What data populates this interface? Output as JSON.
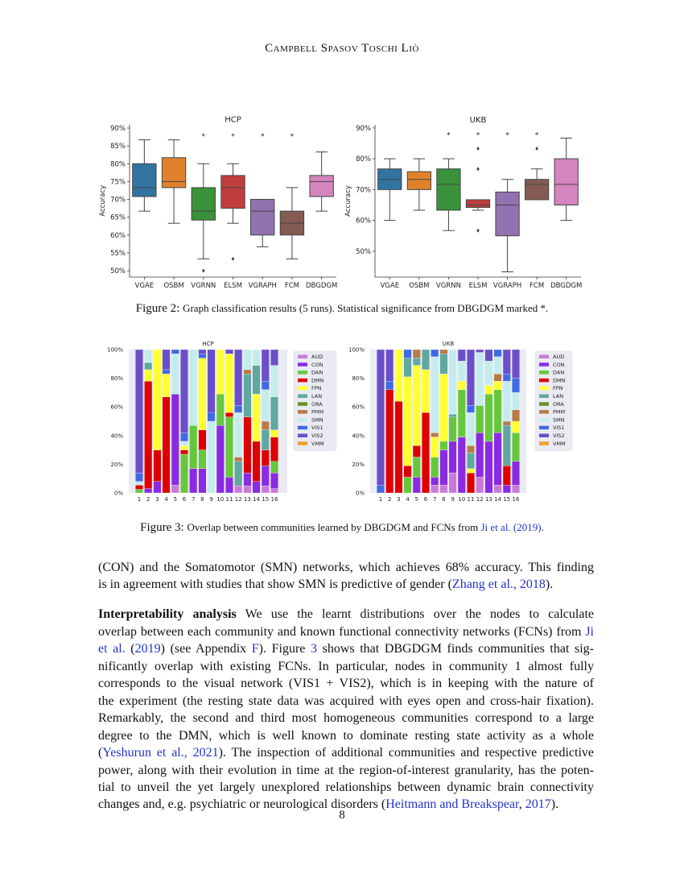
{
  "header": {
    "running_title": "Campbell Spasov Toschi Liò"
  },
  "figure2": {
    "label": "Figure 2:",
    "caption": "Graph classification results (5 runs). Statistical significance from DBGDGM marked *."
  },
  "figure3": {
    "label": "Figure 3:",
    "caption_pre": "Overlap between communities learned by DBGDGM and FCNs from ",
    "caption_link": "Ji et al. (2019)",
    "caption_post": "."
  },
  "body": {
    "lines": [
      [
        {
          "t": "(CON) and the Somatomotor (SMN) networks, which achieves 68% accuracy. This finding"
        }
      ],
      [
        {
          "t": "is in agreement with studies that show SMN is predictive of gender ("
        },
        {
          "t": "Zhang et al., 2018",
          "link": true
        },
        {
          "t": ")."
        }
      ],
      [
        {
          "t": "Interpretability analysis",
          "bold": true
        },
        {
          "t": "  We use the learnt distributions over the nodes to calculate"
        }
      ],
      [
        {
          "t": "overlap between each community and known functional connectivity networks (FCNs) from "
        },
        {
          "t": "Ji",
          "link": true
        }
      ],
      [
        {
          "t": "et al.",
          "link": true
        },
        {
          "t": " ("
        },
        {
          "t": "2019",
          "link": true
        },
        {
          "t": ") (see Appendix "
        },
        {
          "t": "F",
          "link": true
        },
        {
          "t": ").  Figure "
        },
        {
          "t": "3",
          "link": true
        },
        {
          "t": " shows that DBGDGM finds communities that sig-"
        }
      ],
      [
        {
          "t": "nificantly overlap with existing FCNs.  In particular, nodes in community 1 almost fully"
        }
      ],
      [
        {
          "t": "corresponds to the visual network (VIS1 + VIS2), which is in keeping with the nature of"
        }
      ],
      [
        {
          "t": "the experiment (the resting state data was acquired with eyes open and cross-hair fixation)."
        }
      ],
      [
        {
          "t": "Remarkably, the second and third most homogeneous communities correspond to a large"
        }
      ],
      [
        {
          "t": "degree to the DMN, which is well known to dominate resting state activity as a whole"
        }
      ],
      [
        {
          "t": "("
        },
        {
          "t": "Yeshurun et al., 2021",
          "link": true
        },
        {
          "t": "). The inspection of additional communities and respective predictive"
        }
      ],
      [
        {
          "t": "power, along with their evolution in time at the region-of-interest granularity, has the poten-"
        }
      ],
      [
        {
          "t": "tial to unveil the yet largely unexplored relationships between dynamic brain connectivity"
        }
      ],
      [
        {
          "t": "changes and, e.g. psychiatric or neurological disorders ("
        },
        {
          "t": "Heitmann and Breakspear",
          "link": true
        },
        {
          "t": ", "
        },
        {
          "t": "2017",
          "link": true
        },
        {
          "t": ")."
        }
      ]
    ]
  },
  "page_number": "8",
  "chart_data": [
    {
      "type": "box",
      "title": "HCP",
      "ylabel": "Accuracy",
      "ylim": [
        48.2,
        91
      ],
      "yticks": [
        "50%",
        "55%",
        "60%",
        "65%",
        "70%",
        "75%",
        "80%",
        "85%",
        "90%"
      ],
      "ytick_values": [
        50,
        55,
        60,
        65,
        70,
        75,
        80,
        85,
        90
      ],
      "significance_marker": "*",
      "boxes": [
        {
          "name": "VGAE",
          "color": "#3274a1",
          "whislo": 66.7,
          "q1": 70.8,
          "med": 73.3,
          "q3": 80,
          "whishi": 86.7,
          "fliers": [],
          "significant": false
        },
        {
          "name": "OSBM",
          "color": "#e1812c",
          "whislo": 63.3,
          "q1": 73.3,
          "med": 75,
          "q3": 81.7,
          "whishi": 86.7,
          "fliers": [],
          "significant": false
        },
        {
          "name": "VGRNN",
          "color": "#3a923a",
          "whislo": 53.3,
          "q1": 64.2,
          "med": 66.7,
          "q3": 73.3,
          "whishi": 80,
          "fliers": [
            50
          ],
          "significant": true
        },
        {
          "name": "ELSM",
          "color": "#c03d3e",
          "whislo": 63.3,
          "q1": 67.5,
          "med": 73.3,
          "q3": 76.7,
          "whishi": 80,
          "fliers": [
            53.3
          ],
          "significant": true
        },
        {
          "name": "VGRAPH",
          "color": "#9372b2",
          "whislo": 56.7,
          "q1": 60,
          "med": 66.7,
          "q3": 70,
          "whishi": 70,
          "fliers": [],
          "significant": true
        },
        {
          "name": "FCM",
          "color": "#845b53",
          "whislo": 53.3,
          "q1": 60,
          "med": 63.3,
          "q3": 66.7,
          "whishi": 73.3,
          "fliers": [],
          "significant": true
        },
        {
          "name": "DBGDGM",
          "color": "#d684bd",
          "whislo": 66.7,
          "q1": 70.8,
          "med": 75,
          "q3": 76.7,
          "whishi": 83.3,
          "fliers": [],
          "significant": false
        }
      ]
    },
    {
      "type": "box",
      "title": "UKB",
      "ylabel": "Accuracy",
      "ylim": [
        41.6,
        91
      ],
      "yticks": [
        "50%",
        "60%",
        "70%",
        "80%",
        "90%"
      ],
      "ytick_values": [
        50,
        60,
        70,
        80,
        90
      ],
      "significance_marker": "*",
      "boxes": [
        {
          "name": "VGAE",
          "color": "#3274a1",
          "whislo": 60,
          "q1": 70,
          "med": 73.3,
          "q3": 76.7,
          "whishi": 80,
          "fliers": [],
          "significant": false
        },
        {
          "name": "OSBM",
          "color": "#e1812c",
          "whislo": 63.3,
          "q1": 70,
          "med": 73.3,
          "q3": 75.8,
          "whishi": 80,
          "fliers": [],
          "significant": false
        },
        {
          "name": "VGRNN",
          "color": "#3a923a",
          "whislo": 56.7,
          "q1": 63.3,
          "med": 71.7,
          "q3": 76.7,
          "whishi": 80,
          "fliers": [],
          "significant": true
        },
        {
          "name": "ELSM",
          "color": "#c03d3e",
          "whislo": 63.3,
          "q1": 64.2,
          "med": 65,
          "q3": 66.7,
          "whishi": 66.7,
          "fliers": [
            83.3,
            76.7,
            56.7
          ],
          "significant": true
        },
        {
          "name": "VGRAPH",
          "color": "#9372b2",
          "whislo": 43.3,
          "q1": 55,
          "med": 65,
          "q3": 69.2,
          "whishi": 73.3,
          "fliers": [],
          "significant": true
        },
        {
          "name": "FCM",
          "color": "#845b53",
          "whislo": 66.7,
          "q1": 66.7,
          "med": 71.7,
          "q3": 73.3,
          "whishi": 76.7,
          "fliers": [
            83.3
          ],
          "significant": true
        },
        {
          "name": "DBGDGM",
          "color": "#d684bd",
          "whislo": 60,
          "q1": 65,
          "med": 71.7,
          "q3": 80,
          "whishi": 86.7,
          "fliers": [],
          "significant": false
        }
      ]
    },
    {
      "type": "stacked_bar",
      "title": "HCP",
      "ylim": [
        0,
        100
      ],
      "yticks": [
        "0%",
        "20%",
        "40%",
        "60%",
        "80%",
        "100%"
      ],
      "ytick_values": [
        0,
        20,
        40,
        60,
        80,
        100
      ],
      "categories": [
        "1",
        "2",
        "3",
        "4",
        "5",
        "6",
        "7",
        "8",
        "9",
        "10",
        "11",
        "12",
        "13",
        "14",
        "15",
        "16"
      ],
      "legend": "right",
      "networks": [
        {
          "name": "AUD",
          "color": "#c97ad9"
        },
        {
          "name": "CON",
          "color": "#8a2be2"
        },
        {
          "name": "DAN",
          "color": "#66c73c"
        },
        {
          "name": "DMN",
          "color": "#dd0000"
        },
        {
          "name": "FPN",
          "color": "#ffff33"
        },
        {
          "name": "LAN",
          "color": "#5fa8a0"
        },
        {
          "name": "ORA",
          "color": "#6b8e23"
        },
        {
          "name": "PMM",
          "color": "#b87a48"
        },
        {
          "name": "SMN",
          "color": "#c4ecec"
        },
        {
          "name": "VIS1",
          "color": "#4169e1"
        },
        {
          "name": "VIS2",
          "color": "#6a4fc8"
        },
        {
          "name": "VMM",
          "color": "#f0a030"
        }
      ],
      "stacks": [
        {
          "DAN": 2.5,
          "DMN": 3,
          "SMN": 2.5,
          "VIS1": 6,
          "VIS2": 86
        },
        {
          "CON": 3,
          "DMN": 75,
          "FPN": 8,
          "LAN": 5,
          "SMN": 9
        },
        {
          "CON": 8,
          "DMN": 22,
          "FPN": 70
        },
        {
          "DMN": 67,
          "FPN": 16,
          "VIS1": 3,
          "VIS2": 14
        },
        {
          "AUD": 5.5,
          "CON": 63.5,
          "SMN": 28,
          "VIS1": 3
        },
        {
          "DAN": 27,
          "DMN": 3,
          "FPN": 3,
          "SMN": 3,
          "VIS1": 6,
          "VIS2": 58
        },
        {
          "CON": 17,
          "DAN": 30,
          "SMN": 53
        },
        {
          "CON": 17,
          "DAN": 13,
          "DMN": 14,
          "FPN": 50,
          "VIS1": 3,
          "VIS2": 3
        },
        {
          "SMN": 50,
          "VIS1": 6,
          "VIS2": 44
        },
        {
          "CON": 47,
          "DAN": 22,
          "FPN": 31
        },
        {
          "CON": 11,
          "DAN": 42,
          "DMN": 3,
          "FPN": 41,
          "VIS2": 3
        },
        {
          "AUD": 5,
          "LAN": 17,
          "PMM": 3,
          "SMN": 31,
          "VIS1": 5,
          "VIS2": 39
        },
        {
          "AUD": 5,
          "CON": 9,
          "DMN": 39,
          "LAN": 30,
          "PMM": 3,
          "SMN": 14
        },
        {
          "CON": 8,
          "DMN": 28,
          "FPN": 33,
          "LAN": 20,
          "SMN": 11
        },
        {
          "AUD": 5,
          "CON": 14,
          "DMN": 11,
          "LAN": 14,
          "PMM": 6,
          "SMN": 22,
          "VIS1": 6,
          "VIS2": 22
        },
        {
          "AUD": 3,
          "CON": 11,
          "DAN": 8,
          "DMN": 17,
          "FPN": 5,
          "LAN": 23,
          "SMN": 22,
          "VIS2": 11
        }
      ]
    },
    {
      "type": "stacked_bar",
      "title": "UKB",
      "ylim": [
        0,
        100
      ],
      "yticks": [
        "0%",
        "20%",
        "40%",
        "60%",
        "80%",
        "100%"
      ],
      "ytick_values": [
        0,
        20,
        40,
        60,
        80,
        100
      ],
      "categories": [
        "1",
        "2",
        "3",
        "4",
        "5",
        "6",
        "7",
        "8",
        "9",
        "10",
        "11",
        "12",
        "13",
        "14",
        "15",
        "16"
      ],
      "legend": "right",
      "networks": [
        {
          "name": "AUD",
          "color": "#c97ad9"
        },
        {
          "name": "CON",
          "color": "#8a2be2"
        },
        {
          "name": "DAN",
          "color": "#66c73c"
        },
        {
          "name": "DMN",
          "color": "#dd0000"
        },
        {
          "name": "FPN",
          "color": "#ffff33"
        },
        {
          "name": "LAN",
          "color": "#5fa8a0"
        },
        {
          "name": "ORA",
          "color": "#6b8e23"
        },
        {
          "name": "PMM",
          "color": "#b87a48"
        },
        {
          "name": "SMN",
          "color": "#c4ecec"
        },
        {
          "name": "VIS1",
          "color": "#4169e1"
        },
        {
          "name": "VIS2",
          "color": "#6a4fc8"
        },
        {
          "name": "VMM",
          "color": "#f0a030"
        }
      ],
      "stacks": [
        {
          "VIS1": 5.5,
          "VIS2": 94.5
        },
        {
          "DMN": 72,
          "VIS1": 6,
          "VIS2": 22
        },
        {
          "DMN": 64,
          "FPN": 36
        },
        {
          "DAN": 11,
          "DMN": 8,
          "FPN": 62,
          "LAN": 13,
          "VIS1": 6
        },
        {
          "CON": 11,
          "DAN": 14,
          "DMN": 8,
          "FPN": 56,
          "LAN": 5,
          "PMM": 6
        },
        {
          "DMN": 56,
          "FPN": 30,
          "LAN": 14
        },
        {
          "AUD": 5.5,
          "CON": 5.5,
          "DAN": 14,
          "FPN": 14,
          "PMM": 3,
          "SMN": 53,
          "VIS1": 5
        },
        {
          "AUD": 5.5,
          "CON": 24.5,
          "DAN": 6,
          "FPN": 47,
          "LAN": 14,
          "PMM": 3
        },
        {
          "AUD": 14,
          "CON": 22,
          "DAN": 17,
          "LAN": 2,
          "SMN": 45
        },
        {
          "CON": 39,
          "DAN": 33,
          "FPN": 6,
          "SMN": 14,
          "VIS2": 8
        },
        {
          "DMN": 14,
          "FPN": 3,
          "LAN": 11,
          "PMM": 5,
          "SMN": 23,
          "VIS1": 5,
          "VIS2": 39
        },
        {
          "AUD": 11,
          "CON": 31,
          "DAN": 19,
          "SMN": 37,
          "VIS2": 2
        },
        {
          "CON": 36,
          "DAN": 33,
          "FPN": 6,
          "SMN": 17,
          "VIS2": 8
        },
        {
          "AUD": 5.5,
          "CON": 36.5,
          "DAN": 30,
          "FPN": 6,
          "PMM": 5,
          "SMN": 12,
          "VIS1": 5
        },
        {
          "CON": 5.5,
          "DMN": 13.5,
          "LAN": 28,
          "PMM": 3,
          "SMN": 28,
          "VIS1": 5,
          "VIS2": 17
        },
        {
          "AUD": 5.5,
          "CON": 16.5,
          "DAN": 20,
          "FPN": 8,
          "PMM": 8,
          "SMN": 12,
          "VIS1": 10,
          "VIS2": 20
        }
      ]
    }
  ]
}
